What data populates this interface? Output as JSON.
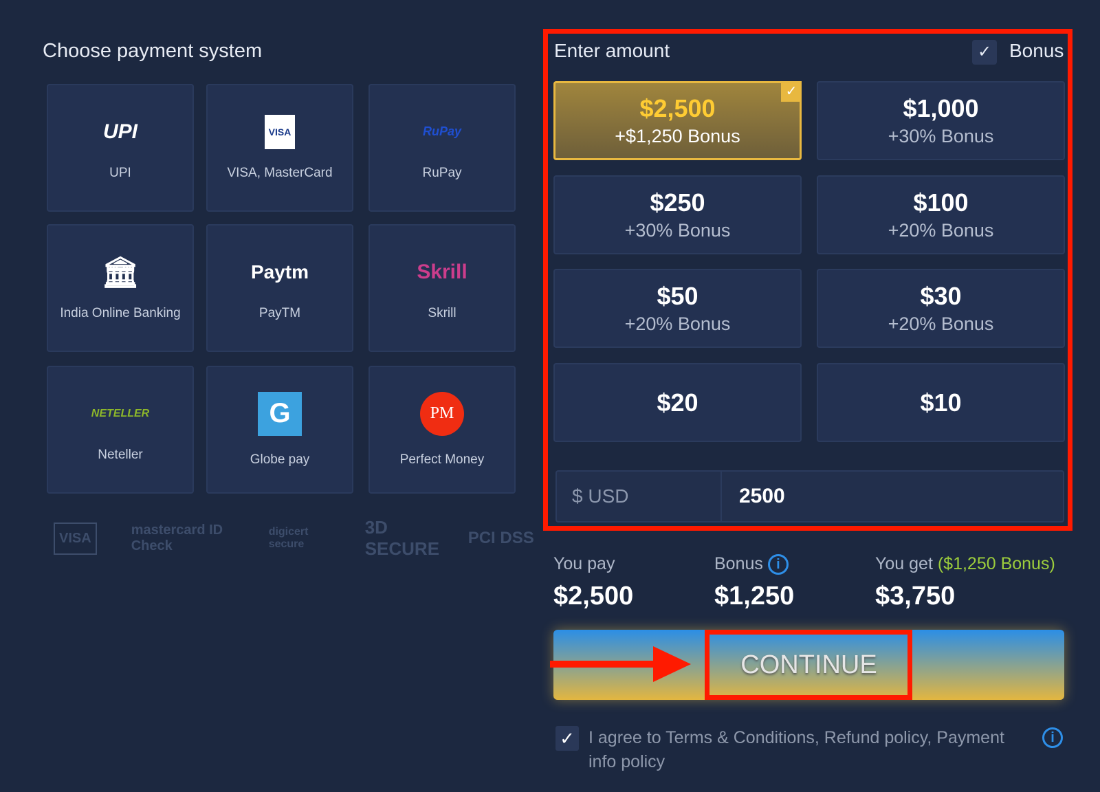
{
  "left": {
    "title": "Choose payment system",
    "methods": [
      {
        "name": "UPI",
        "logo": "UPI"
      },
      {
        "name": "VISA, MasterCard",
        "logo": "VISA"
      },
      {
        "name": "RuPay",
        "logo": "RuPay"
      },
      {
        "name": "India Online Banking",
        "logo": "bank-icon"
      },
      {
        "name": "PayTM",
        "logo": "Paytm"
      },
      {
        "name": "Skrill",
        "logo": "Skrill"
      },
      {
        "name": "Neteller",
        "logo": "NETELLER"
      },
      {
        "name": "Globe pay",
        "logo": "G"
      },
      {
        "name": "Perfect Money",
        "logo": "PM"
      }
    ],
    "seals": [
      "VISA",
      "mastercard ID Check",
      "digicert secure",
      "3D SECURE",
      "PCI DSS"
    ]
  },
  "amount": {
    "title": "Enter amount",
    "bonus_label": "Bonus",
    "bonus_checked": true,
    "options": [
      {
        "amount": "$2,500",
        "bonus": "+$1,250 Bonus",
        "selected": true
      },
      {
        "amount": "$1,000",
        "bonus": "+30% Bonus"
      },
      {
        "amount": "$250",
        "bonus": "+30% Bonus"
      },
      {
        "amount": "$100",
        "bonus": "+20% Bonus"
      },
      {
        "amount": "$50",
        "bonus": "+20% Bonus"
      },
      {
        "amount": "$30",
        "bonus": "+20% Bonus"
      },
      {
        "amount": "$20",
        "bonus": ""
      },
      {
        "amount": "$10",
        "bonus": ""
      }
    ],
    "currency": "$ USD",
    "value": "2500"
  },
  "summary": {
    "pay_label": "You pay",
    "pay": "$2,500",
    "bonus_label": "Bonus",
    "bonus": "$1,250",
    "get_label": "You get",
    "get_note": "($1,250 Bonus)",
    "get": "$3,750"
  },
  "continue_label": "CONTINUE",
  "agree": {
    "checked": true,
    "text": "I agree to Terms & Conditions, Refund policy, Payment info policy"
  },
  "colors": {
    "background": "#1c2840",
    "selected": "#e8b840",
    "highlight": "#ff1a00",
    "bonus_green": "#9ccc3c",
    "info": "#2e8fe8"
  }
}
